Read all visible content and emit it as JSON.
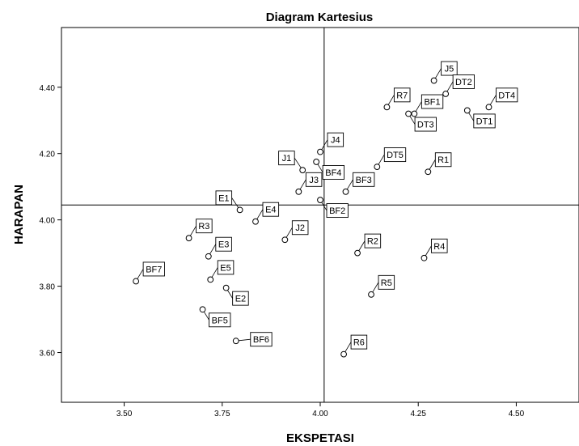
{
  "chart_data": {
    "type": "scatter",
    "title": "Diagram Kartesius",
    "xlabel": "EKSPETASI",
    "ylabel": "HARAPAN",
    "xlim": [
      3.34,
      4.66
    ],
    "ylim": [
      3.45,
      4.58
    ],
    "xticks": [
      "3.50",
      "3.75",
      "4.00",
      "4.25",
      "4.50"
    ],
    "yticks": [
      "3.60",
      "3.80",
      "4.00",
      "4.20",
      "4.40"
    ],
    "reference_lines": {
      "x": 4.01,
      "y": 4.045
    },
    "grid": false,
    "legend": "none",
    "points": [
      {
        "label": "J5",
        "x": 4.29,
        "y": 4.42,
        "pos": "ur"
      },
      {
        "label": "DT2",
        "x": 4.32,
        "y": 4.38,
        "pos": "ur"
      },
      {
        "label": "DT4",
        "x": 4.43,
        "y": 4.34,
        "pos": "ur"
      },
      {
        "label": "R7",
        "x": 4.17,
        "y": 4.34,
        "pos": "ur"
      },
      {
        "label": "BF1",
        "x": 4.24,
        "y": 4.32,
        "pos": "ur"
      },
      {
        "label": "DT3",
        "x": 4.225,
        "y": 4.32,
        "pos": "lr"
      },
      {
        "label": "DT1",
        "x": 4.375,
        "y": 4.33,
        "pos": "lr"
      },
      {
        "label": "J4",
        "x": 4.0,
        "y": 4.205,
        "pos": "ur"
      },
      {
        "label": "J1",
        "x": 3.955,
        "y": 4.15,
        "pos": "ul"
      },
      {
        "label": "BF4",
        "x": 3.99,
        "y": 4.175,
        "pos": "lr"
      },
      {
        "label": "DT5",
        "x": 4.145,
        "y": 4.16,
        "pos": "ur"
      },
      {
        "label": "R1",
        "x": 4.275,
        "y": 4.145,
        "pos": "ur"
      },
      {
        "label": "J3",
        "x": 3.945,
        "y": 4.085,
        "pos": "ur"
      },
      {
        "label": "BF3",
        "x": 4.065,
        "y": 4.085,
        "pos": "ur"
      },
      {
        "label": "BF2",
        "x": 4.0,
        "y": 4.06,
        "pos": "lr"
      },
      {
        "label": "E1",
        "x": 3.795,
        "y": 4.03,
        "pos": "ul"
      },
      {
        "label": "E4",
        "x": 3.835,
        "y": 3.995,
        "pos": "ur"
      },
      {
        "label": "R3",
        "x": 3.665,
        "y": 3.945,
        "pos": "ur"
      },
      {
        "label": "J2",
        "x": 3.91,
        "y": 3.94,
        "pos": "ur"
      },
      {
        "label": "E3",
        "x": 3.715,
        "y": 3.89,
        "pos": "ur"
      },
      {
        "label": "R2",
        "x": 4.095,
        "y": 3.9,
        "pos": "ur"
      },
      {
        "label": "R4",
        "x": 4.265,
        "y": 3.885,
        "pos": "ur"
      },
      {
        "label": "BF7",
        "x": 3.53,
        "y": 3.815,
        "pos": "ur"
      },
      {
        "label": "E5",
        "x": 3.72,
        "y": 3.82,
        "pos": "ur"
      },
      {
        "label": "E2",
        "x": 3.76,
        "y": 3.795,
        "pos": "lr"
      },
      {
        "label": "R5",
        "x": 4.13,
        "y": 3.775,
        "pos": "ur"
      },
      {
        "label": "BF5",
        "x": 3.7,
        "y": 3.73,
        "pos": "lr"
      },
      {
        "label": "BF6",
        "x": 3.785,
        "y": 3.635,
        "pos": "r"
      },
      {
        "label": "R6",
        "x": 4.06,
        "y": 3.595,
        "pos": "ur"
      }
    ]
  }
}
